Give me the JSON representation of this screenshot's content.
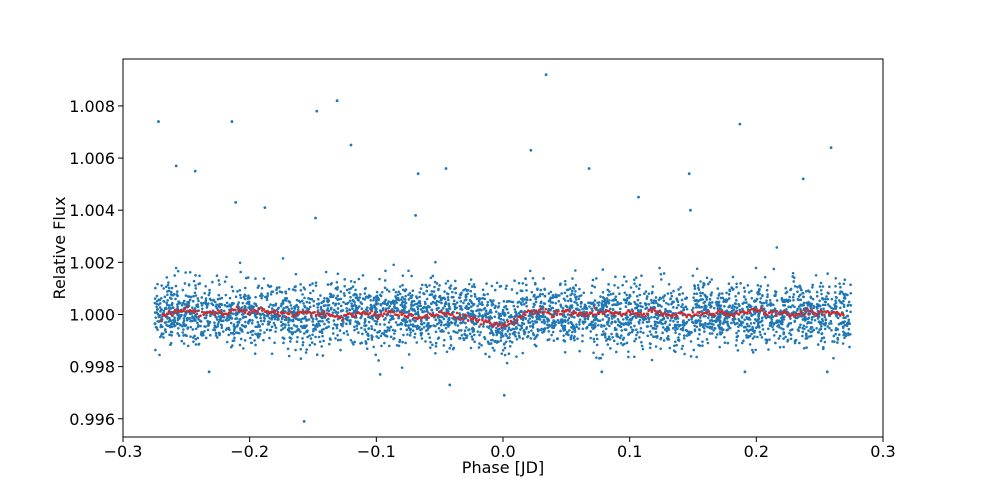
{
  "chart_data": {
    "type": "scatter",
    "xlabel": "Phase [JD]",
    "ylabel": "Relative Flux",
    "xlim": [
      -0.3,
      0.3
    ],
    "ylim": [
      0.9953,
      1.0098
    ],
    "grid": false,
    "x_ticks": [
      -0.3,
      -0.2,
      -0.1,
      0.0,
      0.1,
      0.2,
      0.3
    ],
    "x_tick_labels": [
      "−0.3",
      "−0.2",
      "−0.1",
      "0.0",
      "0.1",
      "0.2",
      "0.3"
    ],
    "y_ticks": [
      0.996,
      0.998,
      1.0,
      1.002,
      1.004,
      1.006,
      1.008
    ],
    "y_tick_labels": [
      "0.996",
      "0.998",
      "1.000",
      "1.002",
      "1.004",
      "1.006",
      "1.008"
    ],
    "colors": {
      "raw": "#1f77b4",
      "binned": "#d62728"
    },
    "series": [
      {
        "key": "raw",
        "x_range": [
          -0.275,
          0.275
        ],
        "flux_center": 1.0,
        "flux_scatter_sigma": 0.0006,
        "point_count": 4000,
        "outliers": [
          {
            "x": -0.272,
            "y": 1.0074
          },
          {
            "x": -0.258,
            "y": 1.0057
          },
          {
            "x": -0.243,
            "y": 1.0055
          },
          {
            "x": -0.214,
            "y": 1.0074
          },
          {
            "x": -0.211,
            "y": 1.0043
          },
          {
            "x": -0.188,
            "y": 1.0041
          },
          {
            "x": -0.147,
            "y": 1.0078
          },
          {
            "x": -0.148,
            "y": 1.0037
          },
          {
            "x": -0.131,
            "y": 1.0082
          },
          {
            "x": -0.12,
            "y": 1.0065
          },
          {
            "x": -0.067,
            "y": 1.0054
          },
          {
            "x": -0.069,
            "y": 1.0038
          },
          {
            "x": -0.045,
            "y": 1.0056
          },
          {
            "x": 0.022,
            "y": 1.0063
          },
          {
            "x": 0.034,
            "y": 1.0092
          },
          {
            "x": 0.068,
            "y": 1.0056
          },
          {
            "x": 0.107,
            "y": 1.0045
          },
          {
            "x": 0.147,
            "y": 1.0054
          },
          {
            "x": 0.148,
            "y": 1.004
          },
          {
            "x": 0.187,
            "y": 1.0073
          },
          {
            "x": 0.237,
            "y": 1.0052
          },
          {
            "x": 0.259,
            "y": 1.0064
          },
          {
            "x": -0.157,
            "y": 0.9959
          },
          {
            "x": -0.042,
            "y": 0.9973
          },
          {
            "x": 0.001,
            "y": 0.9969
          },
          {
            "x": -0.232,
            "y": 0.9978
          },
          {
            "x": -0.097,
            "y": 0.9977
          },
          {
            "x": 0.078,
            "y": 0.9978
          },
          {
            "x": 0.191,
            "y": 0.9978
          },
          {
            "x": 0.256,
            "y": 0.9978
          }
        ]
      },
      {
        "key": "binned",
        "x": [
          -0.27,
          -0.26,
          -0.25,
          -0.24,
          -0.23,
          -0.22,
          -0.21,
          -0.2,
          -0.19,
          -0.18,
          -0.17,
          -0.16,
          -0.15,
          -0.14,
          -0.13,
          -0.12,
          -0.11,
          -0.1,
          -0.09,
          -0.08,
          -0.07,
          -0.06,
          -0.05,
          -0.04,
          -0.03,
          -0.02,
          -0.01,
          0.0,
          0.01,
          0.02,
          0.03,
          0.04,
          0.05,
          0.06,
          0.07,
          0.08,
          0.09,
          0.1,
          0.11,
          0.12,
          0.13,
          0.14,
          0.15,
          0.16,
          0.17,
          0.18,
          0.19,
          0.2,
          0.21,
          0.22,
          0.23,
          0.24,
          0.25,
          0.26,
          0.27
        ],
        "y": [
          0.99995,
          1.0001,
          1.0002,
          1.00005,
          1.0001,
          1.0,
          1.0002,
          1.0001,
          1.00015,
          1.00005,
          0.99995,
          1.0001,
          1.0,
          1.00005,
          0.9999,
          1.0,
          1.00005,
          0.99995,
          1.0001,
          1.0,
          0.99995,
          0.9999,
          1.00005,
          1.0,
          0.9999,
          0.99975,
          0.99965,
          0.99955,
          0.9998,
          1.0001,
          1.00015,
          1.0,
          1.0001,
          1.0,
          1.00005,
          1.0001,
          1.0,
          1.00005,
          1.0,
          1.0001,
          0.99995,
          1.0,
          1.00005,
          1.0,
          1.0001,
          1.0,
          1.0001,
          1.00015,
          1.0,
          1.0001,
          0.99995,
          1.0001,
          1.00005,
          1.0001,
          0.99995
        ]
      }
    ]
  }
}
